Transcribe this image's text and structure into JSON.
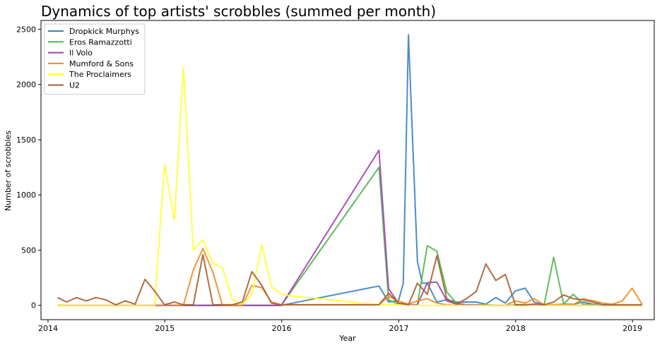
{
  "chart_data": {
    "type": "line",
    "title": "Dynamics of top artists' scrobbles (summed per month)",
    "xlabel": "Year",
    "ylabel": "Number of scrobbles",
    "xlim": [
      "2013-12-10",
      "2019-03-10"
    ],
    "ylim": [
      -130,
      2580
    ],
    "x_ticks": [
      "2014",
      "2015",
      "2016",
      "2017",
      "2018",
      "2019"
    ],
    "y_ticks": [
      "0",
      "500",
      "1000",
      "1500",
      "2000",
      "2500"
    ],
    "legend": "top-left",
    "series": [
      {
        "name": "Dropkick Murphys",
        "color": "#3a7fbf",
        "points": [
          [
            "2014-01-31",
            0
          ],
          [
            "2014-12-31",
            0
          ],
          [
            "2015-12-31",
            0
          ],
          [
            "2016-10-31",
            175
          ],
          [
            "2016-11-30",
            30
          ],
          [
            "2016-12-31",
            40
          ],
          [
            "2017-01-15",
            200
          ],
          [
            "2017-01-31",
            2450
          ],
          [
            "2017-02-28",
            400
          ],
          [
            "2017-03-15",
            200
          ],
          [
            "2017-03-31",
            200
          ],
          [
            "2017-04-30",
            30
          ],
          [
            "2017-05-31",
            50
          ],
          [
            "2017-06-30",
            30
          ],
          [
            "2017-07-31",
            30
          ],
          [
            "2017-08-31",
            30
          ],
          [
            "2017-09-30",
            10
          ],
          [
            "2017-10-31",
            70
          ],
          [
            "2017-11-30",
            20
          ],
          [
            "2017-12-31",
            130
          ],
          [
            "2018-01-31",
            155
          ],
          [
            "2018-02-28",
            30
          ],
          [
            "2018-03-31",
            5
          ],
          [
            "2018-04-30",
            5
          ],
          [
            "2018-05-31",
            10
          ],
          [
            "2018-06-30",
            10
          ],
          [
            "2018-07-31",
            30
          ],
          [
            "2018-08-31",
            10
          ],
          [
            "2018-09-30",
            5
          ],
          [
            "2018-10-31",
            0
          ],
          [
            "2018-11-30",
            0
          ],
          [
            "2018-12-31",
            0
          ],
          [
            "2019-01-31",
            0
          ]
        ]
      },
      {
        "name": "Eros Ramazzotti",
        "color": "#4fb54a",
        "points": [
          [
            "2014-01-31",
            0
          ],
          [
            "2014-12-31",
            0
          ],
          [
            "2015-12-31",
            0
          ],
          [
            "2016-10-31",
            1250
          ],
          [
            "2016-11-30",
            50
          ],
          [
            "2016-12-31",
            10
          ],
          [
            "2017-01-31",
            5
          ],
          [
            "2017-02-28",
            5
          ],
          [
            "2017-03-31",
            540
          ],
          [
            "2017-04-30",
            490
          ],
          [
            "2017-05-31",
            120
          ],
          [
            "2017-06-30",
            20
          ],
          [
            "2017-07-31",
            5
          ],
          [
            "2017-08-31",
            5
          ],
          [
            "2017-09-30",
            5
          ],
          [
            "2017-10-31",
            0
          ],
          [
            "2017-11-30",
            0
          ],
          [
            "2017-12-31",
            5
          ],
          [
            "2018-01-31",
            5
          ],
          [
            "2018-02-28",
            5
          ],
          [
            "2018-03-31",
            5
          ],
          [
            "2018-04-30",
            435
          ],
          [
            "2018-05-31",
            10
          ],
          [
            "2018-06-30",
            100
          ],
          [
            "2018-07-31",
            10
          ],
          [
            "2018-08-31",
            5
          ],
          [
            "2018-09-30",
            0
          ],
          [
            "2018-10-31",
            0
          ],
          [
            "2018-11-30",
            0
          ],
          [
            "2018-12-31",
            0
          ],
          [
            "2019-01-31",
            0
          ]
        ]
      },
      {
        "name": "Il Volo",
        "color": "#a040b0",
        "points": [
          [
            "2014-01-31",
            0
          ],
          [
            "2014-12-31",
            0
          ],
          [
            "2015-12-31",
            0
          ],
          [
            "2016-10-31",
            1405
          ],
          [
            "2016-11-30",
            150
          ],
          [
            "2016-12-31",
            20
          ],
          [
            "2017-01-31",
            5
          ],
          [
            "2017-02-28",
            5
          ],
          [
            "2017-03-31",
            205
          ],
          [
            "2017-04-30",
            210
          ],
          [
            "2017-05-31",
            40
          ],
          [
            "2017-06-30",
            10
          ],
          [
            "2017-07-31",
            5
          ],
          [
            "2017-08-31",
            5
          ],
          [
            "2017-09-30",
            0
          ],
          [
            "2017-10-31",
            0
          ],
          [
            "2017-11-30",
            0
          ],
          [
            "2017-12-31",
            0
          ],
          [
            "2018-01-31",
            0
          ],
          [
            "2018-02-28",
            10
          ],
          [
            "2018-03-31",
            0
          ],
          [
            "2018-04-30",
            0
          ],
          [
            "2018-05-31",
            0
          ],
          [
            "2018-06-30",
            0
          ],
          [
            "2018-07-31",
            0
          ],
          [
            "2018-08-31",
            0
          ],
          [
            "2018-12-31",
            0
          ],
          [
            "2019-01-31",
            0
          ]
        ]
      },
      {
        "name": "Mumford & Sons",
        "color": "#f28a1e",
        "points": [
          [
            "2014-01-31",
            0
          ],
          [
            "2014-12-31",
            0
          ],
          [
            "2015-01-31",
            0
          ],
          [
            "2015-02-28",
            0
          ],
          [
            "2015-03-31",
            320
          ],
          [
            "2015-04-30",
            515
          ],
          [
            "2015-05-31",
            300
          ],
          [
            "2015-06-30",
            0
          ],
          [
            "2015-07-31",
            0
          ],
          [
            "2015-08-31",
            0
          ],
          [
            "2015-09-30",
            180
          ],
          [
            "2015-10-31",
            160
          ],
          [
            "2015-11-30",
            30
          ],
          [
            "2015-12-31",
            5
          ],
          [
            "2016-10-31",
            5
          ],
          [
            "2016-11-30",
            80
          ],
          [
            "2016-12-31",
            40
          ],
          [
            "2017-01-31",
            10
          ],
          [
            "2017-02-28",
            40
          ],
          [
            "2017-03-31",
            60
          ],
          [
            "2017-04-30",
            20
          ],
          [
            "2017-05-31",
            5
          ],
          [
            "2017-06-30",
            0
          ],
          [
            "2017-07-31",
            0
          ],
          [
            "2017-08-31",
            0
          ],
          [
            "2017-09-30",
            0
          ],
          [
            "2017-10-31",
            0
          ],
          [
            "2017-11-30",
            0
          ],
          [
            "2017-12-31",
            40
          ],
          [
            "2018-01-31",
            20
          ],
          [
            "2018-02-28",
            60
          ],
          [
            "2018-03-31",
            5
          ],
          [
            "2018-04-30",
            5
          ],
          [
            "2018-05-31",
            5
          ],
          [
            "2018-06-30",
            5
          ],
          [
            "2018-07-31",
            60
          ],
          [
            "2018-08-31",
            40
          ],
          [
            "2018-09-30",
            20
          ],
          [
            "2018-10-31",
            10
          ],
          [
            "2018-11-30",
            40
          ],
          [
            "2018-12-31",
            155
          ],
          [
            "2019-01-31",
            10
          ]
        ]
      },
      {
        "name": "The Proclaimers",
        "color": "#ffff33",
        "points": [
          [
            "2014-01-31",
            0
          ],
          [
            "2014-04-30",
            0
          ],
          [
            "2014-07-31",
            0
          ],
          [
            "2014-10-31",
            0
          ],
          [
            "2014-11-30",
            0
          ],
          [
            "2014-12-31",
            1275
          ],
          [
            "2015-01-31",
            770
          ],
          [
            "2015-02-28",
            2155
          ],
          [
            "2015-03-31",
            500
          ],
          [
            "2015-04-30",
            595
          ],
          [
            "2015-05-31",
            380
          ],
          [
            "2015-06-30",
            340
          ],
          [
            "2015-07-31",
            50
          ],
          [
            "2015-08-31",
            10
          ],
          [
            "2015-09-30",
            100
          ],
          [
            "2015-10-31",
            550
          ],
          [
            "2015-11-30",
            170
          ],
          [
            "2015-12-31",
            100
          ],
          [
            "2016-01-31",
            85
          ],
          [
            "2016-10-31",
            5
          ],
          [
            "2016-11-30",
            5
          ],
          [
            "2016-12-31",
            5
          ],
          [
            "2017-01-31",
            0
          ],
          [
            "2017-03-31",
            0
          ],
          [
            "2017-05-31",
            0
          ],
          [
            "2017-07-31",
            0
          ],
          [
            "2017-09-30",
            0
          ],
          [
            "2017-11-30",
            0
          ],
          [
            "2018-01-31",
            0
          ],
          [
            "2018-03-31",
            0
          ],
          [
            "2018-05-31",
            0
          ],
          [
            "2018-07-31",
            0
          ],
          [
            "2018-09-30",
            0
          ],
          [
            "2018-11-30",
            0
          ],
          [
            "2019-01-31",
            0
          ]
        ]
      },
      {
        "name": "U2",
        "color": "#a65e2e",
        "points": [
          [
            "2014-01-31",
            70
          ],
          [
            "2014-02-28",
            30
          ],
          [
            "2014-03-31",
            70
          ],
          [
            "2014-04-30",
            40
          ],
          [
            "2014-05-31",
            70
          ],
          [
            "2014-06-30",
            50
          ],
          [
            "2014-07-31",
            5
          ],
          [
            "2014-08-31",
            40
          ],
          [
            "2014-09-30",
            10
          ],
          [
            "2014-10-31",
            235
          ],
          [
            "2014-11-30",
            130
          ],
          [
            "2014-12-31",
            5
          ],
          [
            "2015-01-31",
            30
          ],
          [
            "2015-02-28",
            5
          ],
          [
            "2015-03-31",
            5
          ],
          [
            "2015-04-30",
            460
          ],
          [
            "2015-05-31",
            5
          ],
          [
            "2015-06-30",
            5
          ],
          [
            "2015-07-31",
            5
          ],
          [
            "2015-08-31",
            30
          ],
          [
            "2015-09-30",
            305
          ],
          [
            "2015-10-31",
            180
          ],
          [
            "2015-11-30",
            20
          ],
          [
            "2015-12-31",
            5
          ],
          [
            "2016-10-31",
            5
          ],
          [
            "2016-11-30",
            110
          ],
          [
            "2016-12-31",
            20
          ],
          [
            "2017-01-31",
            5
          ],
          [
            "2017-02-28",
            200
          ],
          [
            "2017-03-31",
            100
          ],
          [
            "2017-04-30",
            450
          ],
          [
            "2017-05-31",
            60
          ],
          [
            "2017-06-30",
            10
          ],
          [
            "2017-07-31",
            60
          ],
          [
            "2017-08-31",
            125
          ],
          [
            "2017-09-30",
            375
          ],
          [
            "2017-10-31",
            225
          ],
          [
            "2017-11-30",
            280
          ],
          [
            "2017-12-31",
            5
          ],
          [
            "2018-01-31",
            5
          ],
          [
            "2018-02-28",
            10
          ],
          [
            "2018-03-31",
            5
          ],
          [
            "2018-04-30",
            30
          ],
          [
            "2018-05-31",
            95
          ],
          [
            "2018-06-30",
            60
          ],
          [
            "2018-07-31",
            50
          ],
          [
            "2018-08-31",
            30
          ],
          [
            "2018-09-30",
            5
          ],
          [
            "2018-10-31",
            5
          ],
          [
            "2018-11-30",
            5
          ],
          [
            "2018-12-31",
            5
          ],
          [
            "2019-01-31",
            5
          ]
        ]
      }
    ]
  }
}
